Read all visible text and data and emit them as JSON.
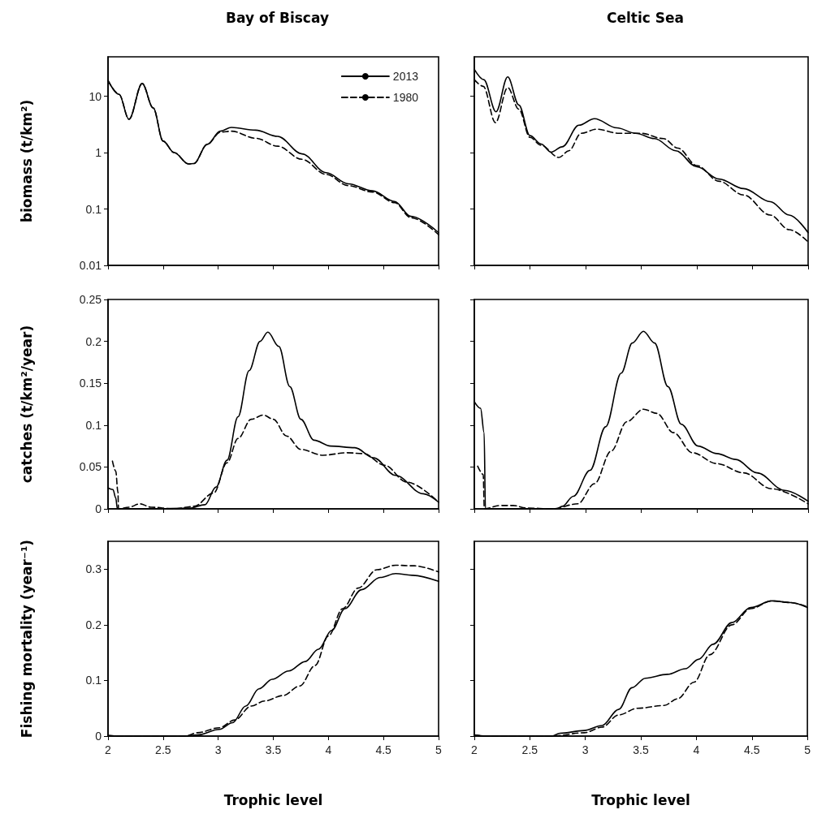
{
  "chart_data": [
    {
      "type": "line",
      "title": "Bay of Biscay",
      "ylabel": "biomass (t/km²)",
      "log": true,
      "xlim": [
        2,
        5
      ],
      "xticks": [
        2,
        2.5,
        3,
        3.5,
        4,
        4.5,
        5
      ],
      "ylim": [
        0.01,
        50
      ],
      "yticks": [
        0.01,
        0.1,
        1,
        10
      ],
      "tick_labels": "y",
      "legend": "top right",
      "grid": false,
      "marker": "none",
      "series": [
        {
          "name": "2013",
          "color": "#000000",
          "line_style": "solid",
          "x": [
            2.0,
            2.1,
            2.19,
            2.31,
            2.41,
            2.5,
            2.6,
            2.73,
            2.78,
            2.9,
            3.02,
            3.12,
            3.34,
            3.54,
            3.76,
            3.98,
            4.18,
            4.4,
            4.6,
            4.75,
            5.0
          ],
          "values": [
            19,
            10.8,
            3.9,
            16.8,
            6.2,
            1.6,
            1.0,
            0.63,
            0.64,
            1.4,
            2.4,
            2.8,
            2.5,
            1.94,
            0.95,
            0.44,
            0.28,
            0.21,
            0.136,
            0.074,
            0.038
          ]
        },
        {
          "name": "1980",
          "color": "#000000",
          "line_style": "dashed",
          "x": [
            2.0,
            2.1,
            2.19,
            2.31,
            2.41,
            2.5,
            2.6,
            2.73,
            2.78,
            2.9,
            3.02,
            3.12,
            3.34,
            3.54,
            3.76,
            3.98,
            4.18,
            4.4,
            4.6,
            4.75,
            5.0
          ],
          "values": [
            19,
            10.8,
            3.9,
            16.8,
            6.2,
            1.6,
            1.0,
            0.63,
            0.64,
            1.4,
            2.3,
            2.4,
            1.8,
            1.3,
            0.76,
            0.41,
            0.26,
            0.2,
            0.13,
            0.07,
            0.035
          ]
        }
      ]
    },
    {
      "type": "line",
      "title": "Celtic Sea",
      "log": true,
      "xlim": [
        2,
        5
      ],
      "xticks": [
        2,
        2.5,
        3,
        3.5,
        4,
        4.5,
        5
      ],
      "ylim": [
        0.01,
        50
      ],
      "yticks": [
        0.01,
        0.1,
        1,
        10
      ],
      "tick_labels": false,
      "grid": false,
      "marker": "none",
      "series": [
        {
          "color": "#000000",
          "line_style": "solid",
          "x": [
            2.0,
            2.085,
            2.195,
            2.3,
            2.4,
            2.5,
            2.6,
            2.69,
            2.79,
            2.94,
            3.08,
            3.28,
            3.45,
            3.62,
            3.81,
            4.0,
            4.2,
            4.42,
            4.66,
            4.83,
            5.0
          ],
          "values": [
            30,
            19.7,
            5.3,
            22,
            7.0,
            2.0,
            1.42,
            1.02,
            1.27,
            3.06,
            4.0,
            2.75,
            2.2,
            1.77,
            1.08,
            0.56,
            0.34,
            0.23,
            0.135,
            0.078,
            0.038
          ]
        },
        {
          "color": "#000000",
          "line_style": "dashed",
          "x": [
            2.0,
            2.08,
            2.19,
            2.3,
            2.4,
            2.5,
            2.6,
            2.76,
            2.85,
            2.96,
            3.1,
            3.3,
            3.5,
            3.7,
            3.83,
            4.0,
            4.2,
            4.42,
            4.66,
            4.83,
            5.0
          ],
          "values": [
            19.7,
            15,
            3.4,
            14.2,
            5.9,
            1.86,
            1.35,
            0.82,
            1.08,
            2.2,
            2.6,
            2.2,
            2.2,
            1.77,
            1.2,
            0.59,
            0.31,
            0.177,
            0.078,
            0.043,
            0.026
          ]
        }
      ]
    },
    {
      "type": "line",
      "ylabel": "catches (t/km²/year)",
      "xlim": [
        2,
        5
      ],
      "xticks": [
        2,
        2.5,
        3,
        3.5,
        4,
        4.5,
        5
      ],
      "ylim": [
        0,
        0.25
      ],
      "yticks": [
        0,
        0.05,
        0.1,
        0.15,
        0.2,
        0.25
      ],
      "tick_labels": "y",
      "grid": false,
      "marker": "none",
      "series": [
        {
          "color": "#000000",
          "line_style": "solid",
          "x": [
            2.0,
            2.045,
            2.07,
            2.085,
            2.4,
            2.74,
            2.88,
            2.98,
            3.08,
            3.18,
            3.28,
            3.38,
            3.45,
            3.55,
            3.65,
            3.75,
            3.87,
            4.02,
            4.24,
            4.41,
            4.61,
            4.86,
            5.0
          ],
          "values": [
            0.025,
            0.023,
            0.013,
            0,
            0,
            0.001,
            0.005,
            0.026,
            0.058,
            0.11,
            0.165,
            0.2,
            0.211,
            0.194,
            0.146,
            0.107,
            0.082,
            0.075,
            0.073,
            0.061,
            0.04,
            0.018,
            0.008
          ]
        },
        {
          "color": "#000000",
          "line_style": "dashed",
          "x": [
            2.04,
            2.07,
            2.09,
            2.095,
            2.19,
            2.29,
            2.39,
            2.6,
            2.78,
            2.96,
            3.08,
            3.18,
            3.3,
            3.41,
            3.5,
            3.62,
            3.75,
            3.95,
            4.17,
            4.32,
            4.51,
            4.71,
            5.0
          ],
          "values": [
            0.057,
            0.045,
            0.02,
            0,
            0.002,
            0.006,
            0.002,
            0,
            0.003,
            0.019,
            0.055,
            0.084,
            0.107,
            0.112,
            0.107,
            0.087,
            0.071,
            0.064,
            0.067,
            0.066,
            0.052,
            0.032,
            0.008
          ]
        }
      ]
    },
    {
      "type": "line",
      "xlim": [
        2,
        5
      ],
      "xticks": [
        2,
        2.5,
        3,
        3.5,
        4,
        4.5,
        5
      ],
      "ylim": [
        0,
        0.25
      ],
      "yticks": [
        0,
        0.05,
        0.1,
        0.15,
        0.2,
        0.25
      ],
      "tick_labels": false,
      "grid": false,
      "marker": "none",
      "series": [
        {
          "color": "#000000",
          "line_style": "solid",
          "x": [
            2.0,
            2.056,
            2.088,
            2.1,
            2.4,
            2.74,
            2.79,
            2.89,
            3.04,
            3.18,
            3.32,
            3.42,
            3.52,
            3.62,
            3.74,
            3.86,
            4.01,
            4.18,
            4.35,
            4.54,
            4.79,
            5.0
          ],
          "values": [
            0.128,
            0.12,
            0.091,
            0,
            0,
            0,
            0.003,
            0.015,
            0.046,
            0.098,
            0.162,
            0.198,
            0.212,
            0.198,
            0.146,
            0.101,
            0.075,
            0.066,
            0.059,
            0.043,
            0.022,
            0.009
          ]
        },
        {
          "color": "#000000",
          "line_style": "dashed",
          "x": [
            2.03,
            2.08,
            2.09,
            2.23,
            2.35,
            2.47,
            2.7,
            2.93,
            3.08,
            3.23,
            3.37,
            3.52,
            3.64,
            3.79,
            3.96,
            4.18,
            4.42,
            4.67,
            5.0
          ],
          "values": [
            0.051,
            0.041,
            0,
            0.004,
            0.004,
            0.001,
            0,
            0.006,
            0.03,
            0.069,
            0.104,
            0.119,
            0.114,
            0.091,
            0.067,
            0.054,
            0.043,
            0.024,
            0.006
          ]
        }
      ]
    },
    {
      "type": "line",
      "ylabel": "Fishing mortality (year⁻¹)",
      "xlabel": "Trophic level",
      "xlim": [
        2,
        5
      ],
      "xticks": [
        2,
        2.5,
        3,
        3.5,
        4,
        4.5,
        5
      ],
      "ylim": [
        0,
        0.35
      ],
      "yticks": [
        0,
        0.1,
        0.2,
        0.3
      ],
      "grid": false,
      "marker": "none",
      "series": [
        {
          "color": "#000000",
          "line_style": "solid",
          "x": [
            2.0,
            2.1,
            2.7,
            2.81,
            3.01,
            3.13,
            3.25,
            3.37,
            3.49,
            3.64,
            3.79,
            3.91,
            4.03,
            4.15,
            4.3,
            4.47,
            4.61,
            4.76,
            5.0
          ],
          "values": [
            0.001,
            0,
            0,
            0.002,
            0.012,
            0.024,
            0.054,
            0.085,
            0.102,
            0.117,
            0.134,
            0.156,
            0.19,
            0.229,
            0.263,
            0.285,
            0.292,
            0.289,
            0.278
          ]
        },
        {
          "color": "#000000",
          "line_style": "dashed",
          "x": [
            2.0,
            2.1,
            2.7,
            2.81,
            3.01,
            3.15,
            3.3,
            3.42,
            3.59,
            3.74,
            3.88,
            4.0,
            4.13,
            4.27,
            4.44,
            4.61,
            4.78,
            5.0
          ],
          "values": [
            0.001,
            0,
            0,
            0.006,
            0.015,
            0.029,
            0.054,
            0.063,
            0.073,
            0.09,
            0.127,
            0.18,
            0.229,
            0.266,
            0.299,
            0.307,
            0.306,
            0.295
          ]
        }
      ]
    },
    {
      "type": "line",
      "xlabel": "Trophic level",
      "xlim": [
        2,
        5
      ],
      "xticks": [
        2,
        2.5,
        3,
        3.5,
        4,
        4.5,
        5
      ],
      "ylim": [
        0,
        0.35
      ],
      "yticks": [
        0,
        0.1,
        0.2,
        0.3
      ],
      "tick_labels": "x",
      "grid": false,
      "marker": "none",
      "series": [
        {
          "color": "#000000",
          "line_style": "solid",
          "x": [
            2.0,
            2.1,
            2.7,
            2.77,
            2.99,
            3.15,
            3.3,
            3.42,
            3.54,
            3.74,
            3.9,
            4.02,
            4.15,
            4.32,
            4.49,
            4.68,
            4.85,
            5.0
          ],
          "values": [
            0.002,
            0,
            0,
            0.005,
            0.01,
            0.019,
            0.048,
            0.087,
            0.104,
            0.111,
            0.121,
            0.138,
            0.165,
            0.204,
            0.231,
            0.243,
            0.24,
            0.231
          ]
        },
        {
          "color": "#000000",
          "line_style": "dashed",
          "x": [
            2.0,
            2.1,
            2.7,
            2.99,
            3.15,
            3.3,
            3.47,
            3.71,
            3.83,
            3.98,
            4.12,
            4.32,
            4.49,
            4.68,
            4.85,
            5.0
          ],
          "values": [
            0.002,
            0,
            0,
            0.006,
            0.016,
            0.038,
            0.05,
            0.055,
            0.067,
            0.097,
            0.146,
            0.2,
            0.229,
            0.243,
            0.24,
            0.232
          ]
        }
      ]
    }
  ]
}
